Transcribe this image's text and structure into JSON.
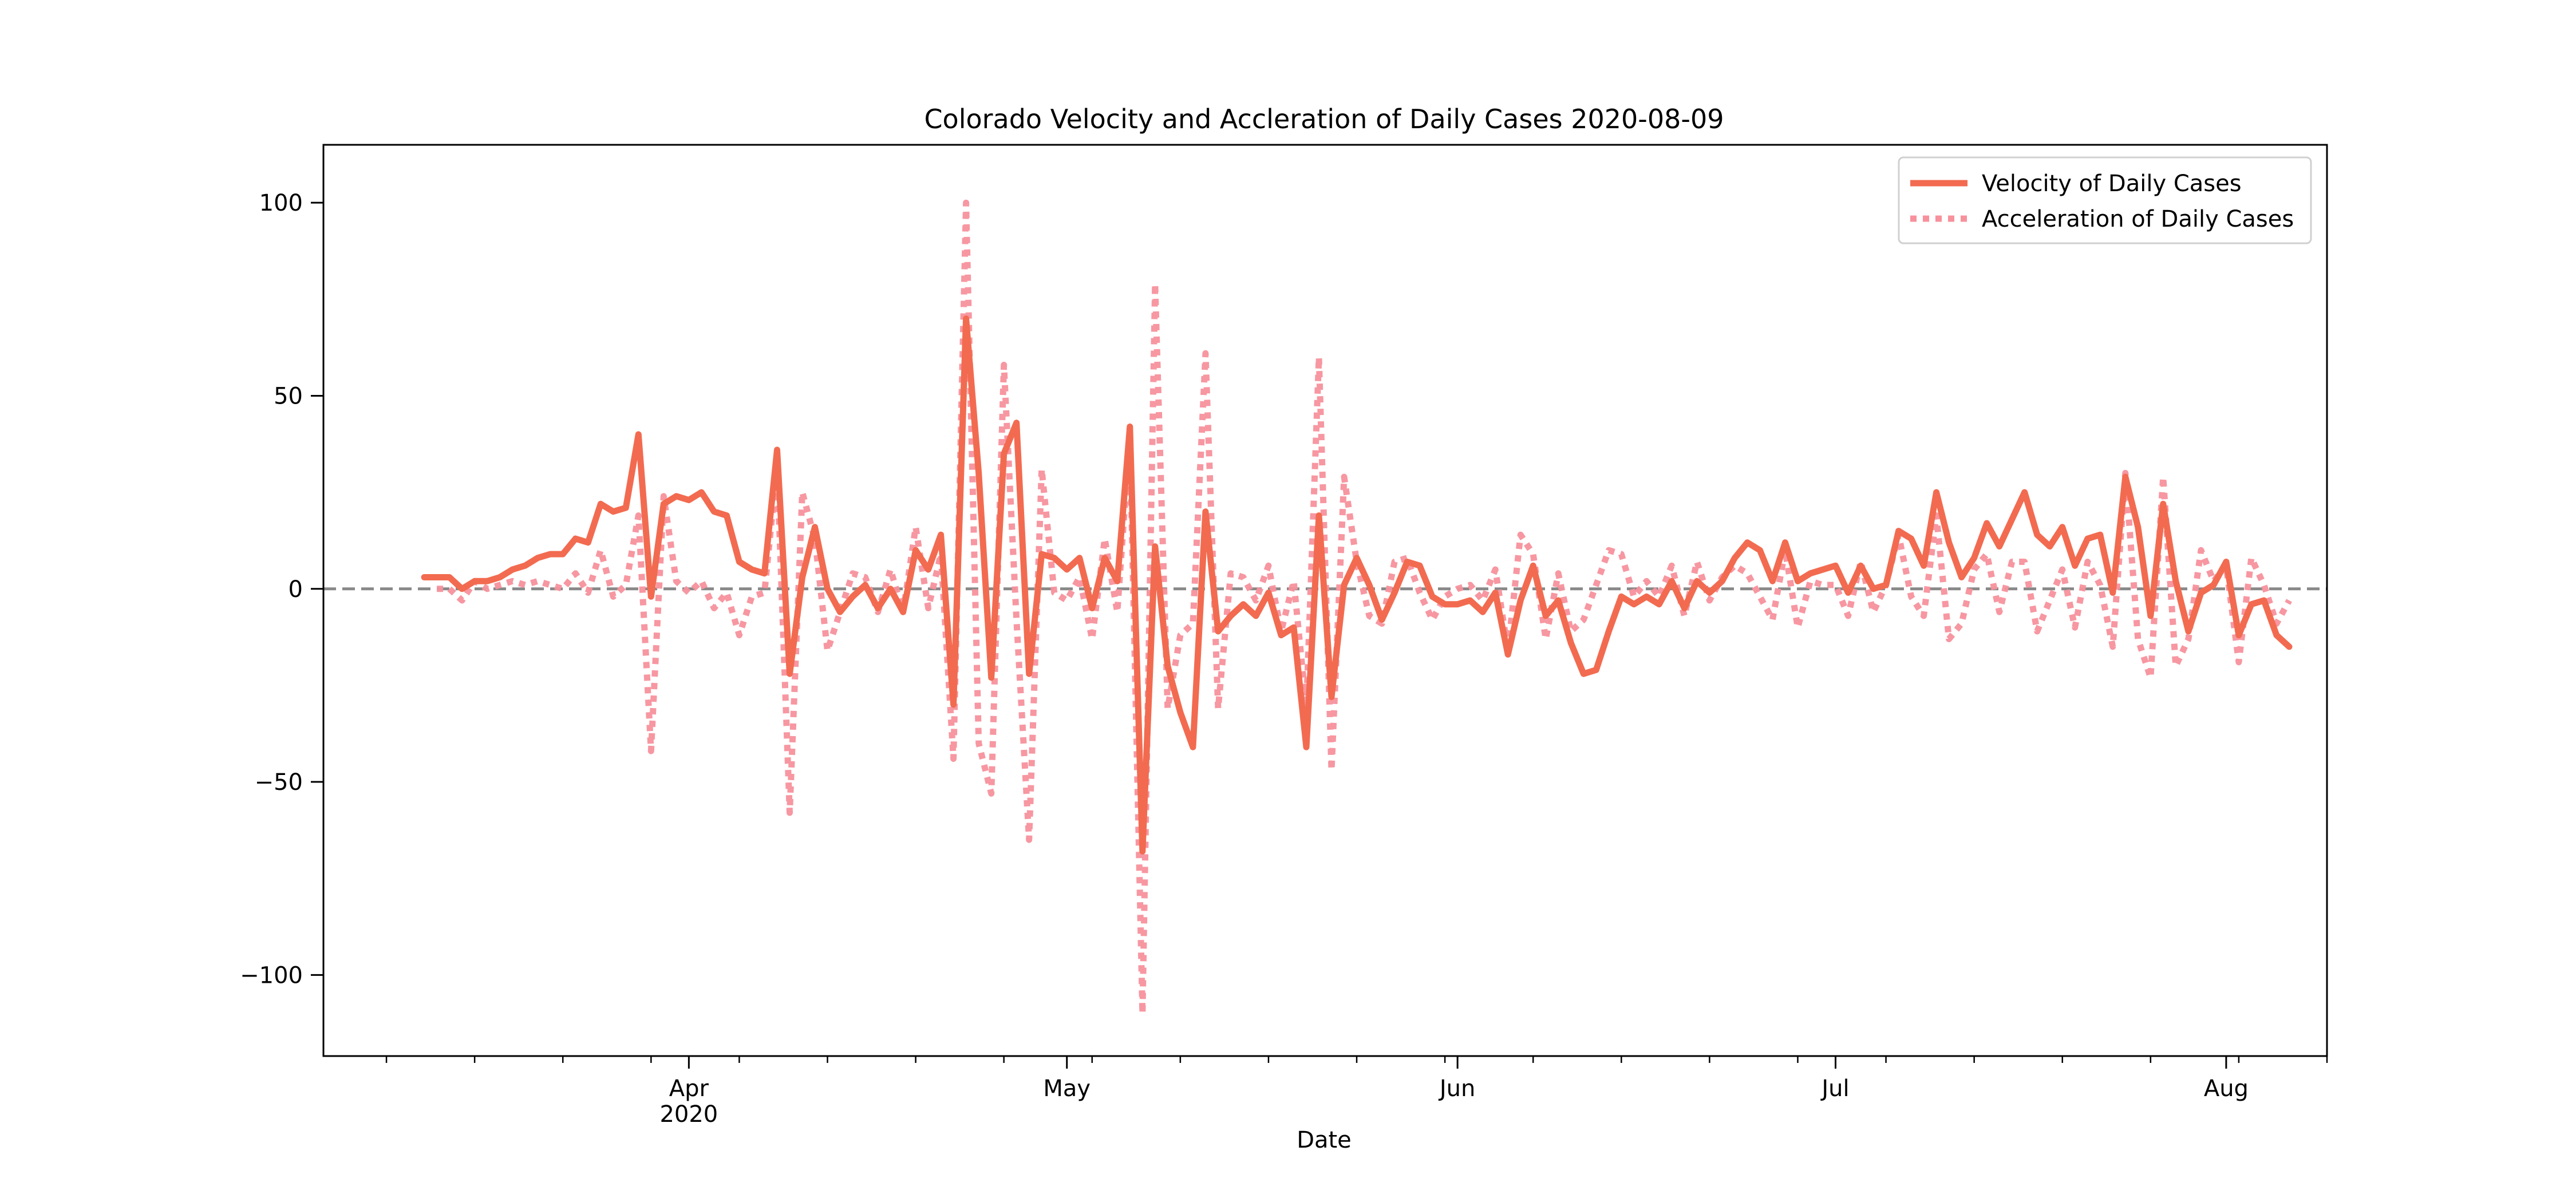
{
  "chart_data": {
    "type": "line",
    "title": "Colorado Velocity and Accleration of Daily Cases 2020-08-09",
    "xlabel": "Date",
    "ylabel": "",
    "x_range": [
      "2020-03-03",
      "2020-08-09"
    ],
    "ylim": [
      -121,
      115
    ],
    "grid": false,
    "legend_position": "top-right",
    "reference_line": {
      "y": 0,
      "style": "dashed",
      "color": "#888888"
    },
    "x_ticks": [
      {
        "date": "2020-04-01",
        "label": "Apr",
        "sublabel": "2020"
      },
      {
        "date": "2020-05-01",
        "label": "May",
        "sublabel": ""
      },
      {
        "date": "2020-06-01",
        "label": "Jun",
        "sublabel": ""
      },
      {
        "date": "2020-07-01",
        "label": "Jul",
        "sublabel": ""
      },
      {
        "date": "2020-08-01",
        "label": "Aug",
        "sublabel": ""
      }
    ],
    "y_ticks": [
      {
        "value": 100,
        "label": "100"
      },
      {
        "value": 50,
        "label": "50"
      },
      {
        "value": 0,
        "label": "0"
      },
      {
        "value": -50,
        "label": "−50"
      },
      {
        "value": -100,
        "label": "−100"
      }
    ],
    "series": [
      {
        "name": "Velocity of Daily Cases",
        "color": "#f26b50",
        "style": "solid",
        "start_date": "2020-03-11",
        "values": [
          3,
          3,
          3,
          0,
          2,
          2,
          3,
          5,
          6,
          8,
          9,
          9,
          13,
          12,
          22,
          20,
          21,
          40,
          -2,
          22,
          24,
          23,
          25,
          20,
          19,
          7,
          5,
          4,
          36,
          -22,
          3,
          16,
          0,
          -6,
          -2,
          1,
          -5,
          0,
          -6,
          10,
          5,
          14,
          -30,
          70,
          30,
          -23,
          35,
          43,
          -22,
          9,
          8,
          5,
          8,
          -5,
          8,
          2,
          42,
          -68,
          11,
          -20,
          -32,
          -41,
          20,
          -11,
          -7,
          -4,
          -7,
          -1,
          -12,
          -10,
          -41,
          19,
          -28,
          1,
          8,
          1,
          -8,
          -1,
          7,
          6,
          -2,
          -4,
          -4,
          -3,
          -6,
          -1,
          -17,
          -3,
          6,
          -7,
          -3,
          -14,
          -22,
          -21,
          -11,
          -2,
          -4,
          -2,
          -4,
          2,
          -5,
          2,
          -1,
          2,
          8,
          12,
          10,
          2,
          12,
          2,
          4,
          5,
          6,
          -1,
          6,
          0,
          1,
          15,
          13,
          6,
          25,
          12,
          3,
          8,
          17,
          11,
          18,
          25,
          14,
          11,
          16,
          6,
          13,
          14,
          -1,
          29,
          16,
          -7,
          22,
          2,
          -11,
          -1,
          1,
          7,
          -12,
          -4,
          -3,
          -12,
          -15
        ]
      },
      {
        "name": "Acceleration of Daily Cases",
        "color": "#f7919c",
        "style": "dotted",
        "start_date": "2020-03-12",
        "values": [
          0,
          0,
          -3,
          2,
          0,
          1,
          2,
          1,
          2,
          1,
          0,
          4,
          -1,
          10,
          -2,
          1,
          19,
          -42,
          24,
          2,
          -1,
          2,
          -5,
          -1,
          -12,
          -2,
          -1,
          32,
          -58,
          25,
          13,
          -16,
          -6,
          4,
          3,
          -6,
          5,
          -6,
          16,
          -5,
          9,
          -44,
          100,
          -40,
          -53,
          58,
          -8,
          -65,
          31,
          -1,
          -3,
          3,
          -13,
          13,
          -6,
          40,
          -110,
          79,
          -31,
          -12,
          -9,
          61,
          -31,
          4,
          3,
          -3,
          6,
          -11,
          2,
          -31,
          60,
          -47,
          29,
          7,
          -7,
          -9,
          7,
          8,
          -1,
          -8,
          -2,
          0,
          1,
          -3,
          5,
          -16,
          14,
          9,
          -13,
          4,
          -11,
          -8,
          1,
          10,
          9,
          -2,
          2,
          -2,
          6,
          -7,
          7,
          -3,
          3,
          6,
          4,
          -2,
          -8,
          10,
          -10,
          2,
          1,
          1,
          -7,
          7,
          -6,
          1,
          14,
          -2,
          -7,
          19,
          -13,
          -9,
          5,
          9,
          -6,
          7,
          7,
          -11,
          -3,
          5,
          -10,
          7,
          1,
          -15,
          30,
          -13,
          -23,
          29,
          -20,
          -13,
          10,
          2,
          6,
          -19,
          8,
          1,
          -9,
          -3
        ]
      }
    ]
  }
}
